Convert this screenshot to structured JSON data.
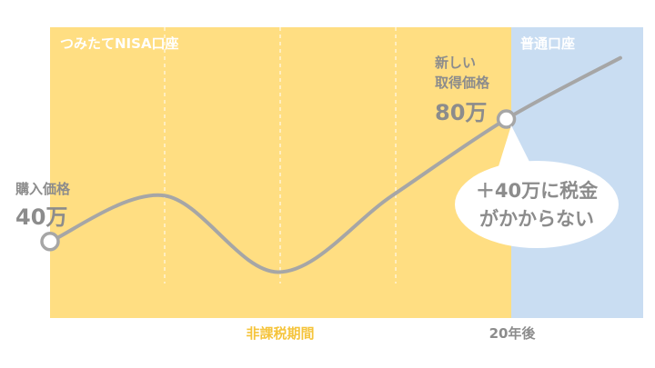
{
  "colors": {
    "nisa_zone": "#FFDE82",
    "normal_zone": "#C9DDF2",
    "line": "#A6A6A6",
    "label_gray": "#8C8C8C",
    "label_orange": "#F5C43C",
    "zone_label": "#FFFFFF",
    "bubble": "#FFFFFF"
  },
  "zones": {
    "nisa_label": "つみたてNISA口座",
    "normal_label": "普通口座"
  },
  "labels": {
    "purchase_title": "購入価格",
    "purchase_value": "40万",
    "new_title_line1": "新しい",
    "new_title_line2": "取得価格",
    "new_value": "80万",
    "bubble_line1": "＋40万に税金",
    "bubble_line2": "がかからない",
    "period_label": "非課税期間",
    "end_label": "20年後"
  },
  "chart_data": {
    "type": "line",
    "series": [
      {
        "values": [
          40,
          55,
          30,
          55,
          80,
          100
        ]
      }
    ],
    "x": [
      0,
      5,
      10,
      15,
      20,
      25
    ],
    "x_tick_labels": {
      "20": "20年後"
    },
    "markers": [
      {
        "x": 0,
        "y": 40,
        "label": "40万"
      },
      {
        "x": 20,
        "y": 80,
        "label": "80万"
      }
    ],
    "annotation": "＋40万に税金がかからない",
    "shaded_regions": [
      {
        "from": 0,
        "to": 20,
        "label": "つみたてNISA口座"
      },
      {
        "from": 20,
        "to": 26,
        "label": "普通口座"
      }
    ],
    "xlim": [
      0,
      26
    ],
    "ylim": [
      15,
      110
    ],
    "grid": "vertical dashed"
  }
}
